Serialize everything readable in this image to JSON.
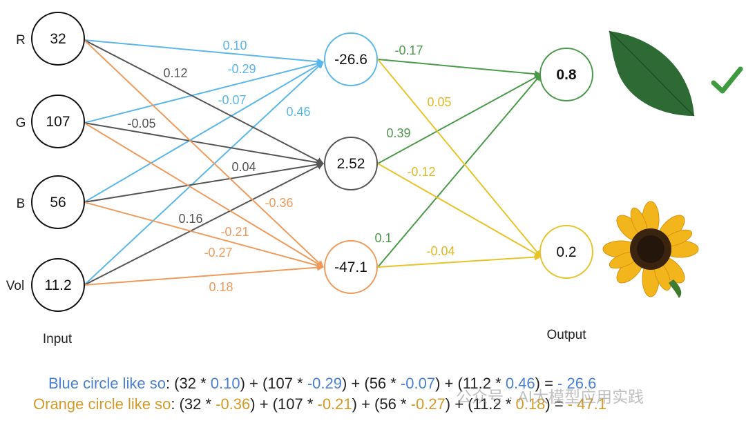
{
  "input_nodes": [
    {
      "label": "R",
      "value": "32"
    },
    {
      "label": "G",
      "value": "107"
    },
    {
      "label": "B",
      "value": "56"
    },
    {
      "label": "Vol",
      "value": "11.2"
    }
  ],
  "hidden_nodes": [
    {
      "value": "-26.6",
      "color": "#5bb6ea"
    },
    {
      "value": "2.52",
      "color": "#555555"
    },
    {
      "value": "-47.1",
      "color": "#ef9a5c"
    }
  ],
  "output_nodes": [
    {
      "value": "0.8",
      "color": "#4a9a4a"
    },
    {
      "value": "0.2",
      "color": "#e6c42a"
    }
  ],
  "labels": {
    "input": "Input",
    "output": "Output"
  },
  "weights_input_hidden": {
    "blue": [
      "0.10",
      "-0.29",
      "-0.07",
      "0.46"
    ],
    "dark": [
      "0.12",
      "-0.05",
      "0.04",
      "0.16"
    ],
    "orange": [
      "-0.36",
      "-0.21",
      "-0.27",
      "0.18"
    ]
  },
  "weights_hidden_output": {
    "green": [
      "-0.17",
      "0.39",
      "0.1"
    ],
    "yellow": [
      "0.05",
      "-0.12",
      "-0.04"
    ]
  },
  "colors": {
    "blue": "#5bb6ea",
    "dark": "#555555",
    "orange": "#ef9a5c",
    "green": "#4a9a4a",
    "yellow": "#e6c42a"
  },
  "icons": {
    "leaf": "leaf-icon",
    "check": "checkmark-icon",
    "sunflower": "sunflower-icon"
  },
  "formula_blue": {
    "prefix": "Blue circle like so",
    "p1": ": (32 * ",
    "w1": "0.10",
    "p2": ") + (107 * ",
    "w2": "-0.29",
    "p3": ") + (56 * ",
    "w3": "-0.07",
    "p4": ") + (11.2 * ",
    "w4": "0.46",
    "p5": ") = ",
    "result": "- 26.6"
  },
  "formula_orange": {
    "prefix": "Orange circle like so",
    "p1": ": (32 * ",
    "w1": "-0.36",
    "p2": ") + (107 * ",
    "w2": "-0.21",
    "p3": ") + (56 * ",
    "w3": "-0.27",
    "p4": ") + (11.2 * ",
    "w4": "0.18",
    "p5": ") = ",
    "result": "- 47.1"
  },
  "watermark": "公众号 · AI大模型应用实践"
}
